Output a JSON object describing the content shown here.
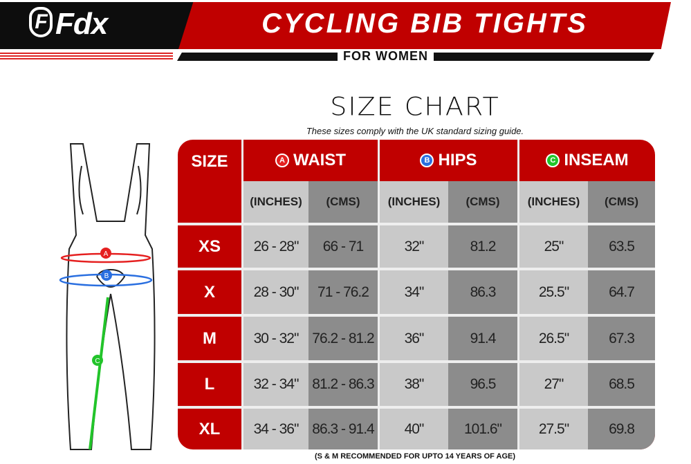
{
  "brand": {
    "logo_text": "Fdx"
  },
  "header": {
    "title": "CYCLING BIB TIGHTS",
    "subtitle": "FOR WOMEN"
  },
  "chart_title": "SIZE CHART",
  "note": "These sizes comply with the UK standard sizing guide.",
  "figure": {
    "markers": [
      {
        "label": "A",
        "color": "#e52020"
      },
      {
        "label": "B",
        "color": "#2a6fe0"
      },
      {
        "label": "C",
        "color": "#22c42a"
      }
    ]
  },
  "table": {
    "size_header": "SIZE",
    "groups": [
      {
        "badge": "A",
        "label": "WAIST",
        "color": "#e52020"
      },
      {
        "badge": "B",
        "label": "HIPS",
        "color": "#2a6fe0"
      },
      {
        "badge": "C",
        "label": "INSEAM",
        "color": "#22c42a"
      }
    ],
    "units": [
      "(INCHES)",
      "(CMS)",
      "(INCHES)",
      "(CMS)",
      "(INCHES)",
      "(CMS)"
    ],
    "rows": [
      {
        "size": "XS",
        "values": [
          "26 - 28\"",
          "66 - 71",
          "32\"",
          "81.2",
          "25\"",
          "63.5"
        ]
      },
      {
        "size": "X",
        "values": [
          "28 - 30\"",
          "71 - 76.2",
          "34\"",
          "86.3",
          "25.5\"",
          "64.7"
        ]
      },
      {
        "size": "M",
        "values": [
          "30 - 32\"",
          "76.2 - 81.2",
          "36\"",
          "91.4",
          "26.5\"",
          "67.3"
        ]
      },
      {
        "size": "L",
        "values": [
          "32 - 34\"",
          "81.2 - 86.3",
          "38\"",
          "96.5",
          "27\"",
          "68.5"
        ]
      },
      {
        "size": "XL",
        "values": [
          "34 - 36\"",
          "86.3 - 91.4",
          "40\"",
          "101.6\"",
          "27.5\"",
          "69.8"
        ]
      }
    ]
  },
  "footer": "(S & M RECOMMENDED FOR UPTO 14 YEARS OF AGE)",
  "colors": {
    "red": "#c00000",
    "black": "#0d0d0d",
    "light_gray": "#c9c9c9",
    "dark_gray": "#8c8c8c"
  }
}
